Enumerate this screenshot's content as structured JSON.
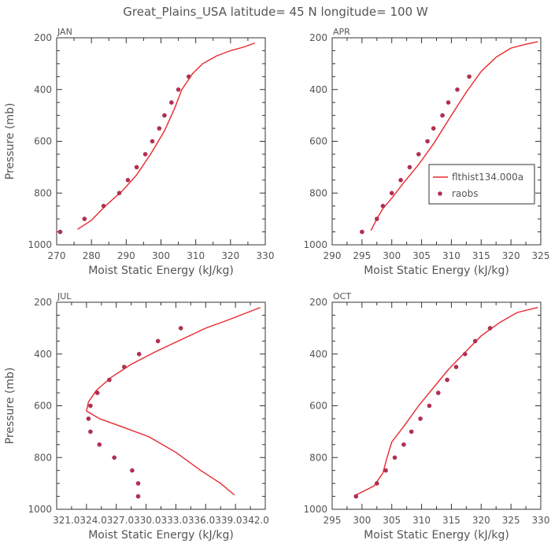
{
  "title": "Great_Plains_USA   latitude= 45 N longitude= 100 W",
  "colors": {
    "model": "#e8282e",
    "obs": "#b03050",
    "axis": "#333333",
    "text": "#555555"
  },
  "chart_data": [
    {
      "type": "line",
      "panel_label": "JAN",
      "xlabel": "Moist Static Energy (kJ/kg)",
      "ylabel": "Pressure (mb)",
      "xlim": [
        270,
        330
      ],
      "ylim": [
        200,
        1000
      ],
      "x_ticks": [
        "270",
        "280",
        "290",
        "300",
        "310",
        "320",
        "330"
      ],
      "y_ticks": [
        "200",
        "400",
        "600",
        "800",
        "1000"
      ],
      "series": [
        {
          "style": "line",
          "points": [
            [
              276,
              940
            ],
            [
              280,
              905
            ],
            [
              284,
              850
            ],
            [
              289,
              790
            ],
            [
              293,
              730
            ],
            [
              297,
              650
            ],
            [
              301,
              560
            ],
            [
              304,
              470
            ],
            [
              306,
              400
            ],
            [
              309,
              340
            ],
            [
              312,
              300
            ],
            [
              316,
              270
            ],
            [
              320,
              250
            ],
            [
              324,
              235
            ],
            [
              327,
              220
            ]
          ]
        },
        {
          "style": "scatter",
          "points": [
            [
              271,
              950
            ],
            [
              278,
              900
            ],
            [
              283.5,
              850
            ],
            [
              288,
              800
            ],
            [
              290.5,
              750
            ],
            [
              293,
              700
            ],
            [
              295.5,
              650
            ],
            [
              297.5,
              600
            ],
            [
              299.5,
              550
            ],
            [
              301,
              500
            ],
            [
              303,
              450
            ],
            [
              305,
              400
            ],
            [
              308,
              350
            ]
          ]
        }
      ]
    },
    {
      "type": "line",
      "panel_label": "APR",
      "xlabel": "Moist Static Energy (kJ/kg)",
      "ylabel": "",
      "xlim": [
        290,
        325
      ],
      "ylim": [
        200,
        1000
      ],
      "x_ticks": [
        "290",
        "295",
        "300",
        "305",
        "310",
        "315",
        "320",
        "325"
      ],
      "y_ticks": [
        "200",
        "400",
        "600",
        "800",
        "1000"
      ],
      "legend": {
        "position": "right",
        "entries": [
          "flthist134.000a",
          "raobs"
        ]
      },
      "series": [
        {
          "name": "flthist134.000a",
          "style": "line",
          "points": [
            [
              296.5,
              945
            ],
            [
              297.5,
              900
            ],
            [
              298.5,
              860
            ],
            [
              300,
              820
            ],
            [
              302,
              760
            ],
            [
              304.5,
              690
            ],
            [
              307,
              610
            ],
            [
              310,
              500
            ],
            [
              312.5,
              410
            ],
            [
              315,
              330
            ],
            [
              317.5,
              275
            ],
            [
              320,
              240
            ],
            [
              322.5,
              225
            ],
            [
              324.5,
              215
            ]
          ]
        },
        {
          "name": "raobs",
          "style": "scatter",
          "points": [
            [
              295,
              950
            ],
            [
              297.5,
              900
            ],
            [
              298.5,
              850
            ],
            [
              300,
              800
            ],
            [
              301.5,
              750
            ],
            [
              303,
              700
            ],
            [
              304.5,
              650
            ],
            [
              306,
              600
            ],
            [
              307,
              550
            ],
            [
              308.5,
              500
            ],
            [
              309.5,
              450
            ],
            [
              311,
              400
            ],
            [
              313,
              350
            ]
          ]
        }
      ]
    },
    {
      "type": "line",
      "panel_label": "JUL",
      "xlabel": "Moist Static Energy (kJ/kg)",
      "ylabel": "Pressure (mb)",
      "xlim": [
        321.0,
        342.0
      ],
      "ylim": [
        200,
        1000
      ],
      "x_ticks": [
        "321.0",
        "324.0",
        "327.0",
        "330.0",
        "333.0",
        "336.0",
        "339.0",
        "342.0"
      ],
      "x_tick_axis_label": "321.0324.0327.0330.0333.0336.0339.0342.0",
      "y_ticks": [
        "200",
        "400",
        "600",
        "800",
        "1000"
      ],
      "series": [
        {
          "style": "line",
          "points": [
            [
              338.9,
              945
            ],
            [
              337.5,
              900
            ],
            [
              335.5,
              850
            ],
            [
              333,
              780
            ],
            [
              330.3,
              720
            ],
            [
              327.5,
              680
            ],
            [
              325.3,
              650
            ],
            [
              324,
              620
            ],
            [
              324.2,
              585
            ],
            [
              325,
              540
            ],
            [
              326.5,
              490
            ],
            [
              328.5,
              440
            ],
            [
              331,
              390
            ],
            [
              333.5,
              345
            ],
            [
              336,
              300
            ],
            [
              338.5,
              265
            ],
            [
              341.5,
              220
            ]
          ]
        },
        {
          "style": "scatter",
          "points": [
            [
              329.2,
              950
            ],
            [
              329.2,
              900
            ],
            [
              328.6,
              850
            ],
            [
              326.8,
              800
            ],
            [
              325.3,
              750
            ],
            [
              324.4,
              700
            ],
            [
              324.2,
              650
            ],
            [
              324.4,
              600
            ],
            [
              325.1,
              550
            ],
            [
              326.3,
              500
            ],
            [
              327.8,
              450
            ],
            [
              329.3,
              400
            ],
            [
              331.2,
              350
            ],
            [
              333.5,
              300
            ]
          ]
        }
      ]
    },
    {
      "type": "line",
      "panel_label": "OCT",
      "xlabel": "Moist Static Energy (kJ/kg)",
      "ylabel": "",
      "xlim": [
        295,
        330
      ],
      "ylim": [
        200,
        1000
      ],
      "x_ticks": [
        "295",
        "300",
        "305",
        "310",
        "315",
        "320",
        "325",
        "330"
      ],
      "y_ticks": [
        "200",
        "400",
        "600",
        "800",
        "1000"
      ],
      "series": [
        {
          "style": "line",
          "points": [
            [
              299,
              945
            ],
            [
              302,
              910
            ],
            [
              303.5,
              860
            ],
            [
              304.2,
              800
            ],
            [
              305,
              740
            ],
            [
              307,
              680
            ],
            [
              309.5,
              600
            ],
            [
              312,
              530
            ],
            [
              314.5,
              460
            ],
            [
              317,
              400
            ],
            [
              320,
              330
            ],
            [
              323,
              280
            ],
            [
              326,
              240
            ],
            [
              329.5,
              220
            ]
          ]
        },
        {
          "style": "scatter",
          "points": [
            [
              299,
              950
            ],
            [
              302.5,
              900
            ],
            [
              304,
              850
            ],
            [
              305.5,
              800
            ],
            [
              307,
              750
            ],
            [
              308.3,
              700
            ],
            [
              309.8,
              650
            ],
            [
              311.3,
              600
            ],
            [
              312.8,
              550
            ],
            [
              314.3,
              500
            ],
            [
              315.8,
              450
            ],
            [
              317.3,
              400
            ],
            [
              319,
              350
            ],
            [
              321.5,
              300
            ]
          ]
        }
      ]
    }
  ]
}
